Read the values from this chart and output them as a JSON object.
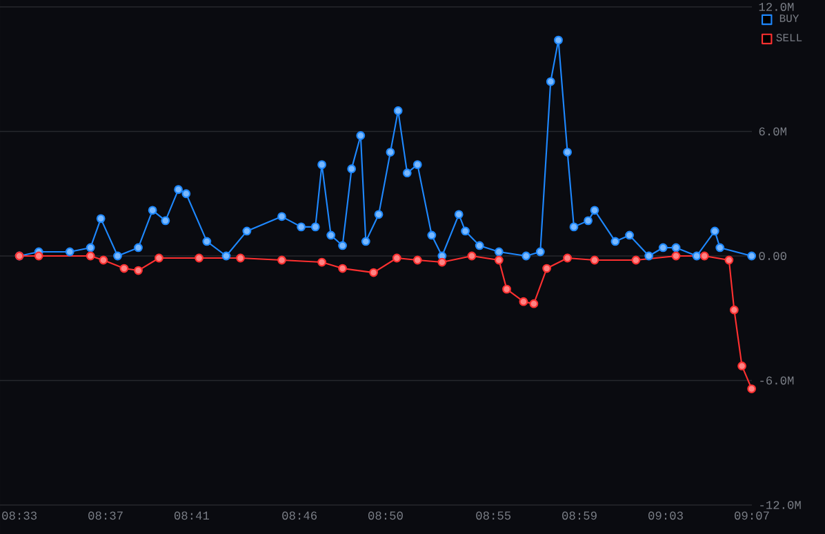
{
  "chart_data": {
    "type": "line",
    "xlim": [
      8.535,
      9.1167
    ],
    "ylim": [
      -12,
      12
    ],
    "xticks": [
      {
        "value": 8.55,
        "label": "08:33"
      },
      {
        "value": 8.6167,
        "label": "08:37"
      },
      {
        "value": 8.6833,
        "label": "08:41"
      },
      {
        "value": 8.7667,
        "label": "08:46"
      },
      {
        "value": 8.8333,
        "label": "08:50"
      },
      {
        "value": 8.9167,
        "label": "08:55"
      },
      {
        "value": 8.9833,
        "label": "08:59"
      },
      {
        "value": 9.05,
        "label": "09:03"
      },
      {
        "value": 9.1167,
        "label": "09:07"
      }
    ],
    "yticks": [
      {
        "value": -12,
        "label": "-12.0M"
      },
      {
        "value": -6,
        "label": "-6.0M"
      },
      {
        "value": 0,
        "label": "0.00"
      },
      {
        "value": 6,
        "label": "6.0M"
      },
      {
        "value": 12,
        "label": "12.0M"
      }
    ],
    "grid": "y",
    "legend": "top right",
    "marker": "circle",
    "line_style": "solid",
    "series": [
      {
        "name": "BUY",
        "color": "#1e88ff",
        "x": [
          8.55,
          8.565,
          8.589,
          8.605,
          8.613,
          8.626,
          8.642,
          8.653,
          8.663,
          8.673,
          8.679,
          8.695,
          8.71,
          8.726,
          8.753,
          8.768,
          8.779,
          8.784,
          8.791,
          8.8,
          8.807,
          8.814,
          8.818,
          8.828,
          8.837,
          8.843,
          8.85,
          8.858,
          8.869,
          8.877,
          8.89,
          8.895,
          8.906,
          8.921,
          8.942,
          8.953,
          8.961,
          8.967,
          8.974,
          8.979,
          8.99,
          8.995,
          9.011,
          9.022,
          9.037,
          9.048,
          9.058,
          9.074,
          9.088,
          9.092,
          9.1165
        ],
        "values": [
          0.0,
          0.2,
          0.2,
          0.4,
          1.8,
          0.0,
          0.4,
          2.2,
          1.7,
          3.2,
          3.0,
          0.7,
          0.0,
          1.2,
          1.9,
          1.4,
          1.4,
          4.4,
          1.0,
          0.5,
          4.2,
          5.8,
          0.7,
          2.0,
          5.0,
          7.0,
          4.0,
          4.4,
          1.0,
          0.0,
          2.0,
          1.2,
          0.5,
          0.2,
          0.0,
          0.2,
          8.4,
          10.4,
          5.0,
          1.4,
          1.7,
          2.2,
          0.7,
          1.0,
          0.0,
          0.4,
          0.4,
          0.0,
          1.2,
          0.4,
          0.0
        ]
      },
      {
        "name": "SELL",
        "color": "#ff3030",
        "x": [
          8.55,
          8.565,
          8.605,
          8.615,
          8.631,
          8.642,
          8.658,
          8.689,
          8.721,
          8.753,
          8.784,
          8.8,
          8.824,
          8.842,
          8.858,
          8.877,
          8.9,
          8.921,
          8.927,
          8.94,
          8.948,
          8.958,
          8.974,
          8.995,
          9.027,
          9.058,
          9.08,
          9.099,
          9.103,
          9.109,
          9.1165
        ],
        "values": [
          0.0,
          0.0,
          0.0,
          -0.2,
          -0.6,
          -0.7,
          -0.1,
          -0.1,
          -0.1,
          -0.2,
          -0.3,
          -0.6,
          -0.8,
          -0.1,
          -0.2,
          -0.3,
          0.0,
          -0.2,
          -1.6,
          -2.2,
          -2.3,
          -0.6,
          -0.1,
          -0.2,
          -0.2,
          0.0,
          0.0,
          -0.2,
          -2.6,
          -5.3,
          -6.4
        ]
      }
    ]
  }
}
